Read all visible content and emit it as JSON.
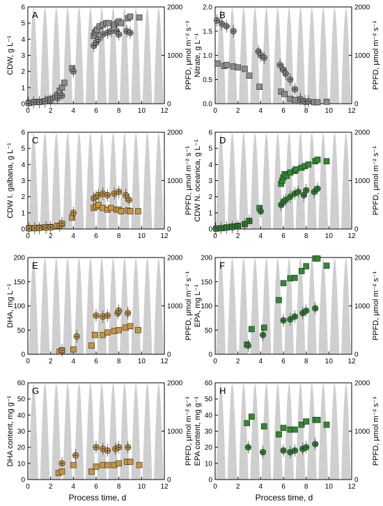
{
  "figure": {
    "xlabel_left": "Process time, d",
    "xlabel_right": "Process time, d",
    "ppfd_label": "PPFD, μmol m⁻² s⁻¹",
    "colors": {
      "gray": "#8c8c8c",
      "orange": "#c8963c",
      "green": "#2e8b2e",
      "dark": "#303030",
      "peak": "#cfcfcf"
    }
  },
  "chart_data": [
    {
      "panel": "A",
      "type": "scatter",
      "ylabel": "CDW, g L⁻¹",
      "ylim": [
        0,
        6
      ],
      "yticks": [
        0,
        1,
        2,
        3,
        4,
        5,
        6
      ],
      "xlim": [
        0,
        12
      ],
      "y2lim": [
        0,
        2000
      ],
      "y2ticks": [
        0,
        1000,
        2000
      ],
      "series": [
        {
          "marker": "square",
          "color": "#8c8c8c",
          "x": [
            0.1,
            0.6,
            0.9,
            1.1,
            1.5,
            1.8,
            2.0,
            2.4,
            2.6,
            2.8,
            3.0,
            3.2,
            3.9,
            5.8,
            5.9,
            6.0,
            6.1,
            6.3,
            6.6,
            6.9,
            7.1,
            7.6,
            7.9,
            8.0,
            8.2,
            8.8,
            9.0,
            9.8
          ],
          "y": [
            0.05,
            0.1,
            0.1,
            0.12,
            0.15,
            0.25,
            0.3,
            0.4,
            0.55,
            0.8,
            1.0,
            1.3,
            2.2,
            4.2,
            4.4,
            4.5,
            4.6,
            4.8,
            4.9,
            5.0,
            5.0,
            4.9,
            5.0,
            5.1,
            5.0,
            5.3,
            5.4,
            5.35
          ]
        },
        {
          "marker": "circle-cross",
          "color": "#8c8c8c",
          "x": [
            0.05,
            0.5,
            1.0,
            1.5,
            2.0,
            2.6,
            3.0,
            4.0,
            5.8,
            6.0,
            6.2,
            6.6,
            7.0,
            7.3,
            7.8,
            8.0,
            8.7,
            9.0
          ],
          "y": [
            0.03,
            0.08,
            0.1,
            0.15,
            0.2,
            0.35,
            0.5,
            2.0,
            3.6,
            3.8,
            4.0,
            4.3,
            4.4,
            4.5,
            4.5,
            4.3,
            4.5,
            4.4
          ]
        }
      ]
    },
    {
      "panel": "B",
      "type": "scatter",
      "ylabel": "Nitrate, g L⁻¹",
      "ylim": [
        0,
        2.0
      ],
      "yticks": [
        0.0,
        0.5,
        1.0,
        1.5,
        2.0
      ],
      "xlim": [
        0,
        12
      ],
      "y2lim": [
        0,
        2000
      ],
      "y2ticks": [
        0,
        1000,
        2000
      ],
      "series": [
        {
          "marker": "square",
          "color": "#8c8c8c",
          "x": [
            0.2,
            0.8,
            1.0,
            1.6,
            2.0,
            2.6,
            3.0,
            3.9,
            5.8,
            6.1,
            6.6,
            7.0,
            7.6,
            8.0,
            8.7,
            9.0,
            9.8
          ],
          "y": [
            0.83,
            0.78,
            0.8,
            0.77,
            0.75,
            0.72,
            0.58,
            0.35,
            0.25,
            0.2,
            0.1,
            0.08,
            0.05,
            0.04,
            0.03,
            0.03,
            0.04
          ]
        },
        {
          "marker": "circle-cross",
          "color": "#8c8c8c",
          "x": [
            0.15,
            0.6,
            1.0,
            1.6,
            3.8,
            4.0,
            4.3,
            5.7,
            6.0,
            6.2,
            6.6,
            7.0,
            7.5,
            7.9,
            8.2
          ],
          "y": [
            1.72,
            1.65,
            1.6,
            1.5,
            1.08,
            1.0,
            0.95,
            0.8,
            0.7,
            0.62,
            0.5,
            0.3,
            0.1,
            0.05,
            0.05
          ]
        }
      ]
    },
    {
      "panel": "C",
      "type": "scatter",
      "ylabel": "CDW I. galbana, g L⁻¹",
      "ylim": [
        0,
        6
      ],
      "yticks": [
        0,
        1,
        2,
        3,
        4,
        5,
        6
      ],
      "xlim": [
        0,
        12
      ],
      "y2lim": [
        0,
        2000
      ],
      "y2ticks": [
        0,
        1000,
        2000
      ],
      "series": [
        {
          "marker": "square",
          "color": "#c8963c",
          "x": [
            0.1,
            0.6,
            1.0,
            1.5,
            2.0,
            2.6,
            3.0,
            3.9,
            5.8,
            6.0,
            6.2,
            6.6,
            7.0,
            7.3,
            7.8,
            8.0,
            8.2,
            8.8,
            9.0,
            9.7
          ],
          "y": [
            0.05,
            0.05,
            0.08,
            0.1,
            0.12,
            0.2,
            0.3,
            0.7,
            1.3,
            1.4,
            1.5,
            1.3,
            1.2,
            1.3,
            1.2,
            1.2,
            1.1,
            1.15,
            1.1,
            1.1
          ]
        },
        {
          "marker": "circle-cross",
          "color": "#c8963c",
          "x": [
            0.1,
            0.6,
            1.0,
            1.6,
            2.0,
            2.8,
            3.0,
            4.0,
            5.8,
            6.0,
            6.2,
            6.6,
            7.0,
            7.6,
            8.0,
            8.6,
            8.9
          ],
          "y": [
            0.03,
            0.05,
            0.05,
            0.08,
            0.1,
            0.2,
            0.35,
            1.0,
            1.9,
            2.0,
            2.1,
            2.2,
            2.1,
            2.2,
            2.3,
            2.1,
            1.8
          ]
        }
      ]
    },
    {
      "panel": "D",
      "type": "scatter",
      "ylabel": "CDW N. oceanica, g L⁻¹",
      "ylim": [
        0,
        6
      ],
      "yticks": [
        0,
        1,
        2,
        3,
        4,
        5,
        6
      ],
      "xlim": [
        0,
        12
      ],
      "y2lim": [
        0,
        2000
      ],
      "y2ticks": [
        0,
        1000,
        2000
      ],
      "series": [
        {
          "marker": "square",
          "color": "#2e8b2e",
          "x": [
            0.1,
            0.6,
            1.0,
            1.5,
            2.0,
            2.6,
            3.0,
            3.9,
            5.8,
            5.9,
            6.0,
            6.1,
            6.3,
            6.6,
            7.0,
            7.1,
            7.6,
            7.9,
            8.2,
            8.8,
            9.0,
            9.8
          ],
          "y": [
            0.03,
            0.05,
            0.1,
            0.15,
            0.2,
            0.3,
            0.5,
            1.3,
            2.8,
            3.0,
            3.2,
            3.4,
            3.3,
            3.5,
            3.6,
            3.7,
            3.8,
            3.9,
            4.0,
            4.2,
            4.3,
            4.2
          ]
        },
        {
          "marker": "circle-cross",
          "color": "#2e8b2e",
          "x": [
            0.05,
            0.5,
            1.0,
            1.5,
            2.0,
            2.6,
            3.0,
            4.0,
            5.8,
            6.0,
            6.2,
            6.6,
            7.0,
            7.3,
            7.8,
            8.0,
            8.7,
            9.0
          ],
          "y": [
            0.02,
            0.05,
            0.08,
            0.1,
            0.15,
            0.3,
            0.5,
            1.1,
            1.5,
            1.7,
            1.8,
            2.0,
            2.2,
            2.3,
            2.1,
            2.4,
            2.3,
            2.5
          ]
        }
      ]
    },
    {
      "panel": "E",
      "type": "scatter",
      "ylabel": "DHA, mg L⁻¹",
      "ylim": [
        0,
        200
      ],
      "yticks": [
        0,
        50,
        100,
        150,
        200
      ],
      "xlim": [
        0,
        12
      ],
      "y2lim": [
        0,
        2000
      ],
      "y2ticks": [
        0,
        1000,
        2000
      ],
      "series": [
        {
          "marker": "square",
          "color": "#c8963c",
          "x": [
            2.8,
            3.0,
            4.0,
            5.6,
            5.9,
            6.6,
            7.0,
            7.6,
            8.0,
            8.6,
            9.0,
            9.7
          ],
          "y": [
            5,
            8,
            10,
            18,
            40,
            40,
            45,
            48,
            50,
            55,
            58,
            50
          ]
        },
        {
          "marker": "circle-cross",
          "color": "#c8963c",
          "x": [
            3.0,
            4.3,
            6.0,
            6.6,
            7.0,
            7.9,
            8.0,
            8.8
          ],
          "y": [
            8,
            37,
            80,
            78,
            80,
            85,
            90,
            85
          ]
        }
      ]
    },
    {
      "panel": "F",
      "type": "scatter",
      "ylabel": "EPA, mg L⁻¹",
      "ylim": [
        0,
        200
      ],
      "yticks": [
        0,
        50,
        100,
        150,
        200
      ],
      "xlim": [
        0,
        12
      ],
      "y2lim": [
        0,
        2000
      ],
      "y2ticks": [
        0,
        1000,
        2000
      ],
      "series": [
        {
          "marker": "square",
          "color": "#2e8b2e",
          "x": [
            2.8,
            3.2,
            4.3,
            5.6,
            6.0,
            6.6,
            7.0,
            7.6,
            8.0,
            8.8,
            9.0,
            9.8
          ],
          "y": [
            20,
            52,
            55,
            112,
            147,
            157,
            158,
            172,
            182,
            198,
            198,
            183
          ]
        },
        {
          "marker": "circle-cross",
          "color": "#2e8b2e",
          "x": [
            2.9,
            4.2,
            6.0,
            6.6,
            7.0,
            7.7,
            8.0,
            8.8
          ],
          "y": [
            18,
            40,
            70,
            72,
            78,
            85,
            90,
            95
          ]
        }
      ]
    },
    {
      "panel": "G",
      "type": "scatter",
      "ylabel": "DHA content, mg g⁻¹",
      "ylim": [
        0,
        60
      ],
      "yticks": [
        0,
        10,
        20,
        30,
        40,
        50,
        60
      ],
      "xlim": [
        0,
        12
      ],
      "y2lim": [
        0,
        2000
      ],
      "y2ticks": [
        0,
        1000,
        2000
      ],
      "series": [
        {
          "marker": "square",
          "color": "#c8963c",
          "x": [
            2.7,
            3.0,
            4.0,
            5.6,
            6.0,
            6.6,
            7.0,
            7.6,
            8.0,
            8.7,
            9.0,
            9.8
          ],
          "y": [
            4,
            5,
            9,
            5,
            8,
            9,
            9,
            9,
            10,
            11,
            11,
            9
          ]
        },
        {
          "marker": "circle-cross",
          "color": "#c8963c",
          "x": [
            3.0,
            4.2,
            6.0,
            6.6,
            7.0,
            7.7,
            8.0,
            8.8
          ],
          "y": [
            10,
            15,
            20,
            19,
            18,
            19,
            20,
            20
          ]
        }
      ]
    },
    {
      "panel": "H",
      "type": "scatter",
      "ylabel": "EPA content, mg g⁻¹",
      "ylim": [
        0,
        60
      ],
      "yticks": [
        0,
        10,
        20,
        30,
        40,
        50,
        60
      ],
      "xlim": [
        0,
        12
      ],
      "y2lim": [
        0,
        2000
      ],
      "y2ticks": [
        0,
        1000,
        2000
      ],
      "series": [
        {
          "marker": "square",
          "color": "#2e8b2e",
          "x": [
            2.8,
            3.2,
            4.3,
            5.6,
            6.0,
            6.6,
            7.0,
            7.6,
            8.0,
            8.8,
            9.0,
            9.8
          ],
          "y": [
            35,
            39,
            33,
            28,
            32,
            31,
            31,
            34,
            36,
            37,
            37,
            34
          ]
        },
        {
          "marker": "circle-cross",
          "color": "#2e8b2e",
          "x": [
            2.9,
            4.2,
            6.0,
            6.6,
            7.0,
            7.7,
            8.0,
            8.8
          ],
          "y": [
            20,
            17,
            18,
            17,
            18,
            19,
            20,
            22
          ]
        }
      ]
    }
  ]
}
